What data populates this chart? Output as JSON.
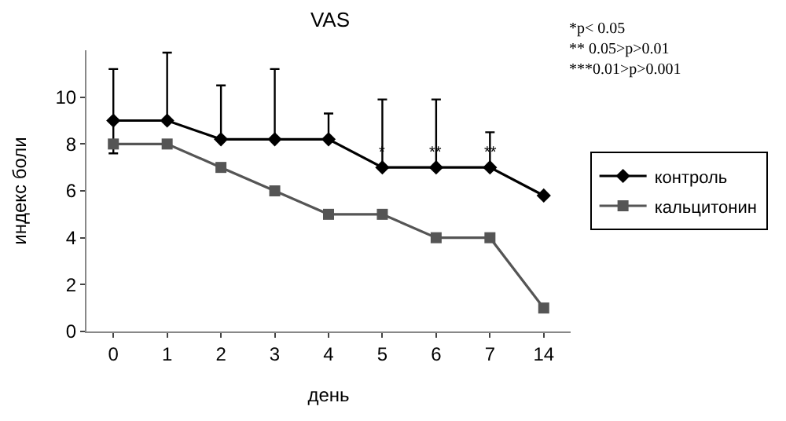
{
  "chart_data": {
    "type": "line",
    "title": "VAS",
    "xlabel": "день",
    "ylabel": "индекс боли",
    "categories": [
      "0",
      "1",
      "2",
      "3",
      "4",
      "5",
      "6",
      "7",
      "14"
    ],
    "series": [
      {
        "name": "контроль",
        "color": "#000000",
        "marker": "diamond",
        "values": [
          9,
          9,
          8.2,
          8.2,
          8.2,
          7,
          7,
          7,
          5.8
        ],
        "errors": [
          [
            7.6,
            11.2
          ],
          [
            9,
            11.9
          ],
          [
            8.2,
            10.5
          ],
          [
            8.2,
            11.2
          ],
          [
            8.2,
            9.3
          ],
          [
            7,
            9.9
          ],
          [
            7,
            9.9
          ],
          [
            7,
            8.5
          ],
          null
        ]
      },
      {
        "name": "кальцитонин",
        "color": "#555555",
        "marker": "square",
        "values": [
          8,
          8,
          7,
          6,
          5,
          5,
          4,
          4,
          1
        ]
      }
    ],
    "ylim": [
      0,
      12
    ],
    "yticks": [
      0,
      2,
      4,
      6,
      8,
      10
    ],
    "legend": "right",
    "annotations": [
      "*p< 0.05\n** 0.05>p>0.01\n***0.01>p>0.001",
      {
        "text": "*",
        "x": "5",
        "y": 7.6
      },
      {
        "text": "**",
        "x": "6",
        "y": 7.6
      },
      {
        "text": "**",
        "x": "7",
        "y": 7.6
      }
    ]
  }
}
